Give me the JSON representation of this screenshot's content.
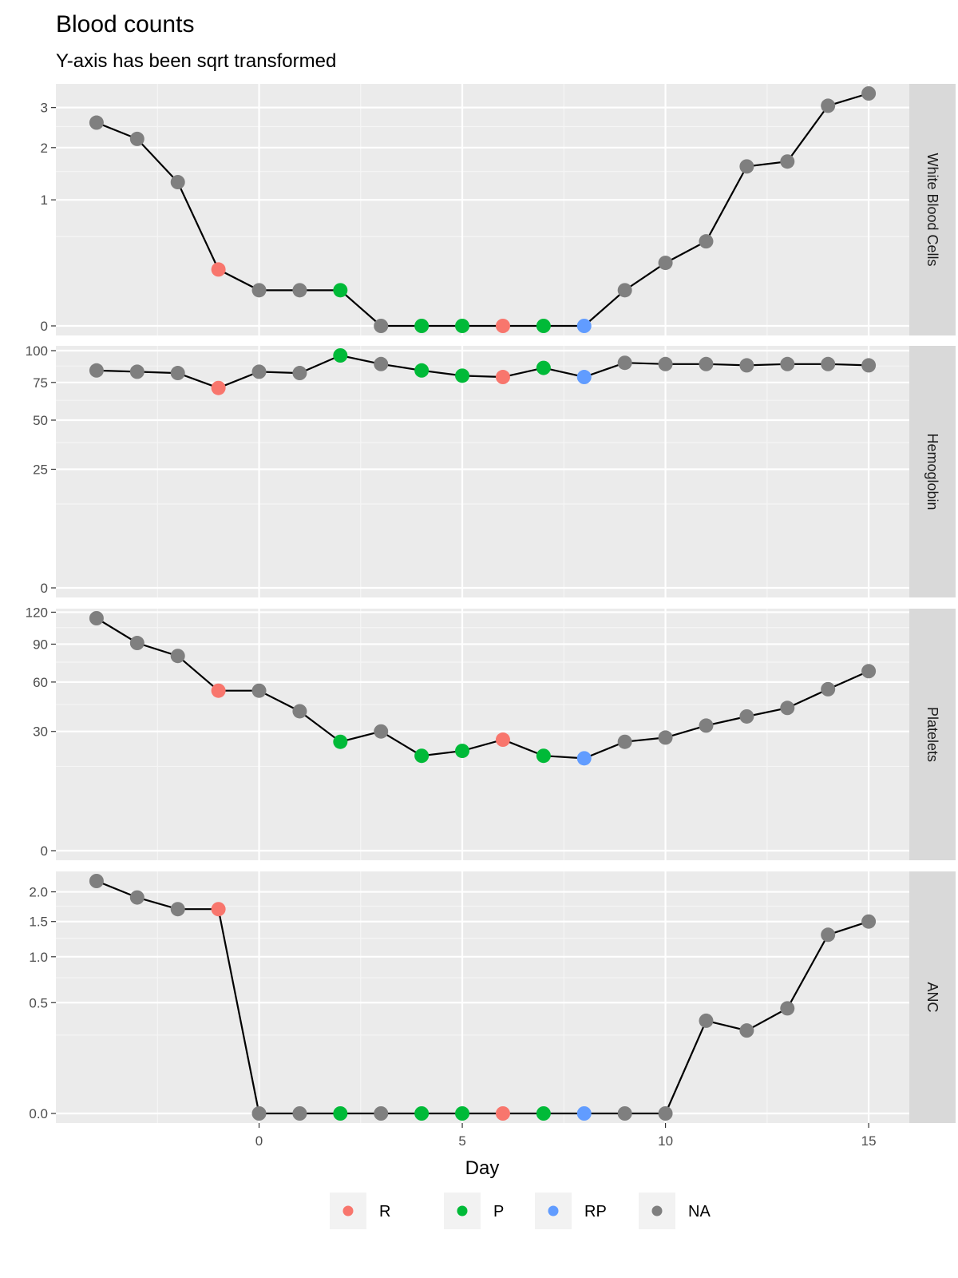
{
  "chart_data": {
    "type": "line",
    "title": "Blood counts",
    "subtitle": "Y-axis has been sqrt transformed",
    "xlabel": "Day",
    "x": [
      -4,
      -3,
      -2,
      -1,
      0,
      1,
      2,
      3,
      4,
      5,
      6,
      7,
      8,
      9,
      10,
      11,
      12,
      13,
      14,
      15
    ],
    "x_ticks": [
      0,
      5,
      10,
      15
    ],
    "x_tick_labels": [
      "0",
      "5",
      "10",
      "15"
    ],
    "xlim": [
      -5,
      16
    ],
    "y_scale": "sqrt",
    "grid": true,
    "categories_per_point": [
      "NA",
      "NA",
      "NA",
      "R",
      "NA",
      "NA",
      "P",
      "NA",
      "P",
      "P",
      "R",
      "P",
      "RP",
      "NA",
      "NA",
      "NA",
      "NA",
      "NA",
      "NA",
      "NA"
    ],
    "legend": {
      "placement": "bottom",
      "entries": [
        {
          "label": "R",
          "color": "#F8766D"
        },
        {
          "label": "P",
          "color": "#00BA38"
        },
        {
          "label": "RP",
          "color": "#619CFF"
        },
        {
          "label": "NA",
          "color": "#7F7F7F"
        }
      ]
    },
    "panels": [
      {
        "name": "White Blood Cells",
        "ylim": [
          0,
          3.4
        ],
        "y_ticks": [
          0,
          1,
          2,
          3
        ],
        "y_tick_labels": [
          "0",
          "1",
          "2",
          "3"
        ],
        "values": [
          2.6,
          2.2,
          1.3,
          0.2,
          0.08,
          0.08,
          0.08,
          0,
          0,
          0,
          0,
          0,
          0,
          0.08,
          0.25,
          0.45,
          1.6,
          1.7,
          3.05,
          3.4
        ]
      },
      {
        "name": "Hemoglobin",
        "ylim": [
          0,
          96
        ],
        "y_ticks": [
          0,
          25,
          50,
          75,
          100
        ],
        "y_tick_labels": [
          "0",
          "25",
          "50",
          "75",
          "100"
        ],
        "values": [
          84,
          83,
          82,
          71,
          83,
          82,
          96,
          89,
          84,
          80,
          79,
          86,
          79,
          90,
          89,
          89,
          88,
          89,
          89,
          88
        ]
      },
      {
        "name": "Platelets",
        "ylim": [
          0,
          114
        ],
        "y_ticks": [
          0,
          30,
          60,
          90,
          120
        ],
        "y_tick_labels": [
          "0",
          "30",
          "60",
          "90",
          "120"
        ],
        "values": [
          114,
          91,
          80,
          54,
          54,
          41,
          25,
          30,
          19,
          21,
          26,
          19,
          18,
          25,
          27,
          33,
          38,
          43,
          55,
          68
        ]
      },
      {
        "name": "ANC",
        "ylim": [
          0,
          2.2
        ],
        "y_ticks": [
          0,
          0.5,
          1,
          1.5,
          2
        ],
        "y_tick_labels": [
          "0.0",
          "0.5",
          "1.0",
          "1.5",
          "2.0"
        ],
        "values": [
          2.2,
          1.9,
          1.7,
          1.7,
          0,
          0,
          0,
          0,
          0,
          0,
          0,
          0,
          0,
          0,
          0,
          0.35,
          0.28,
          0.45,
          1.3,
          1.5
        ]
      }
    ]
  }
}
